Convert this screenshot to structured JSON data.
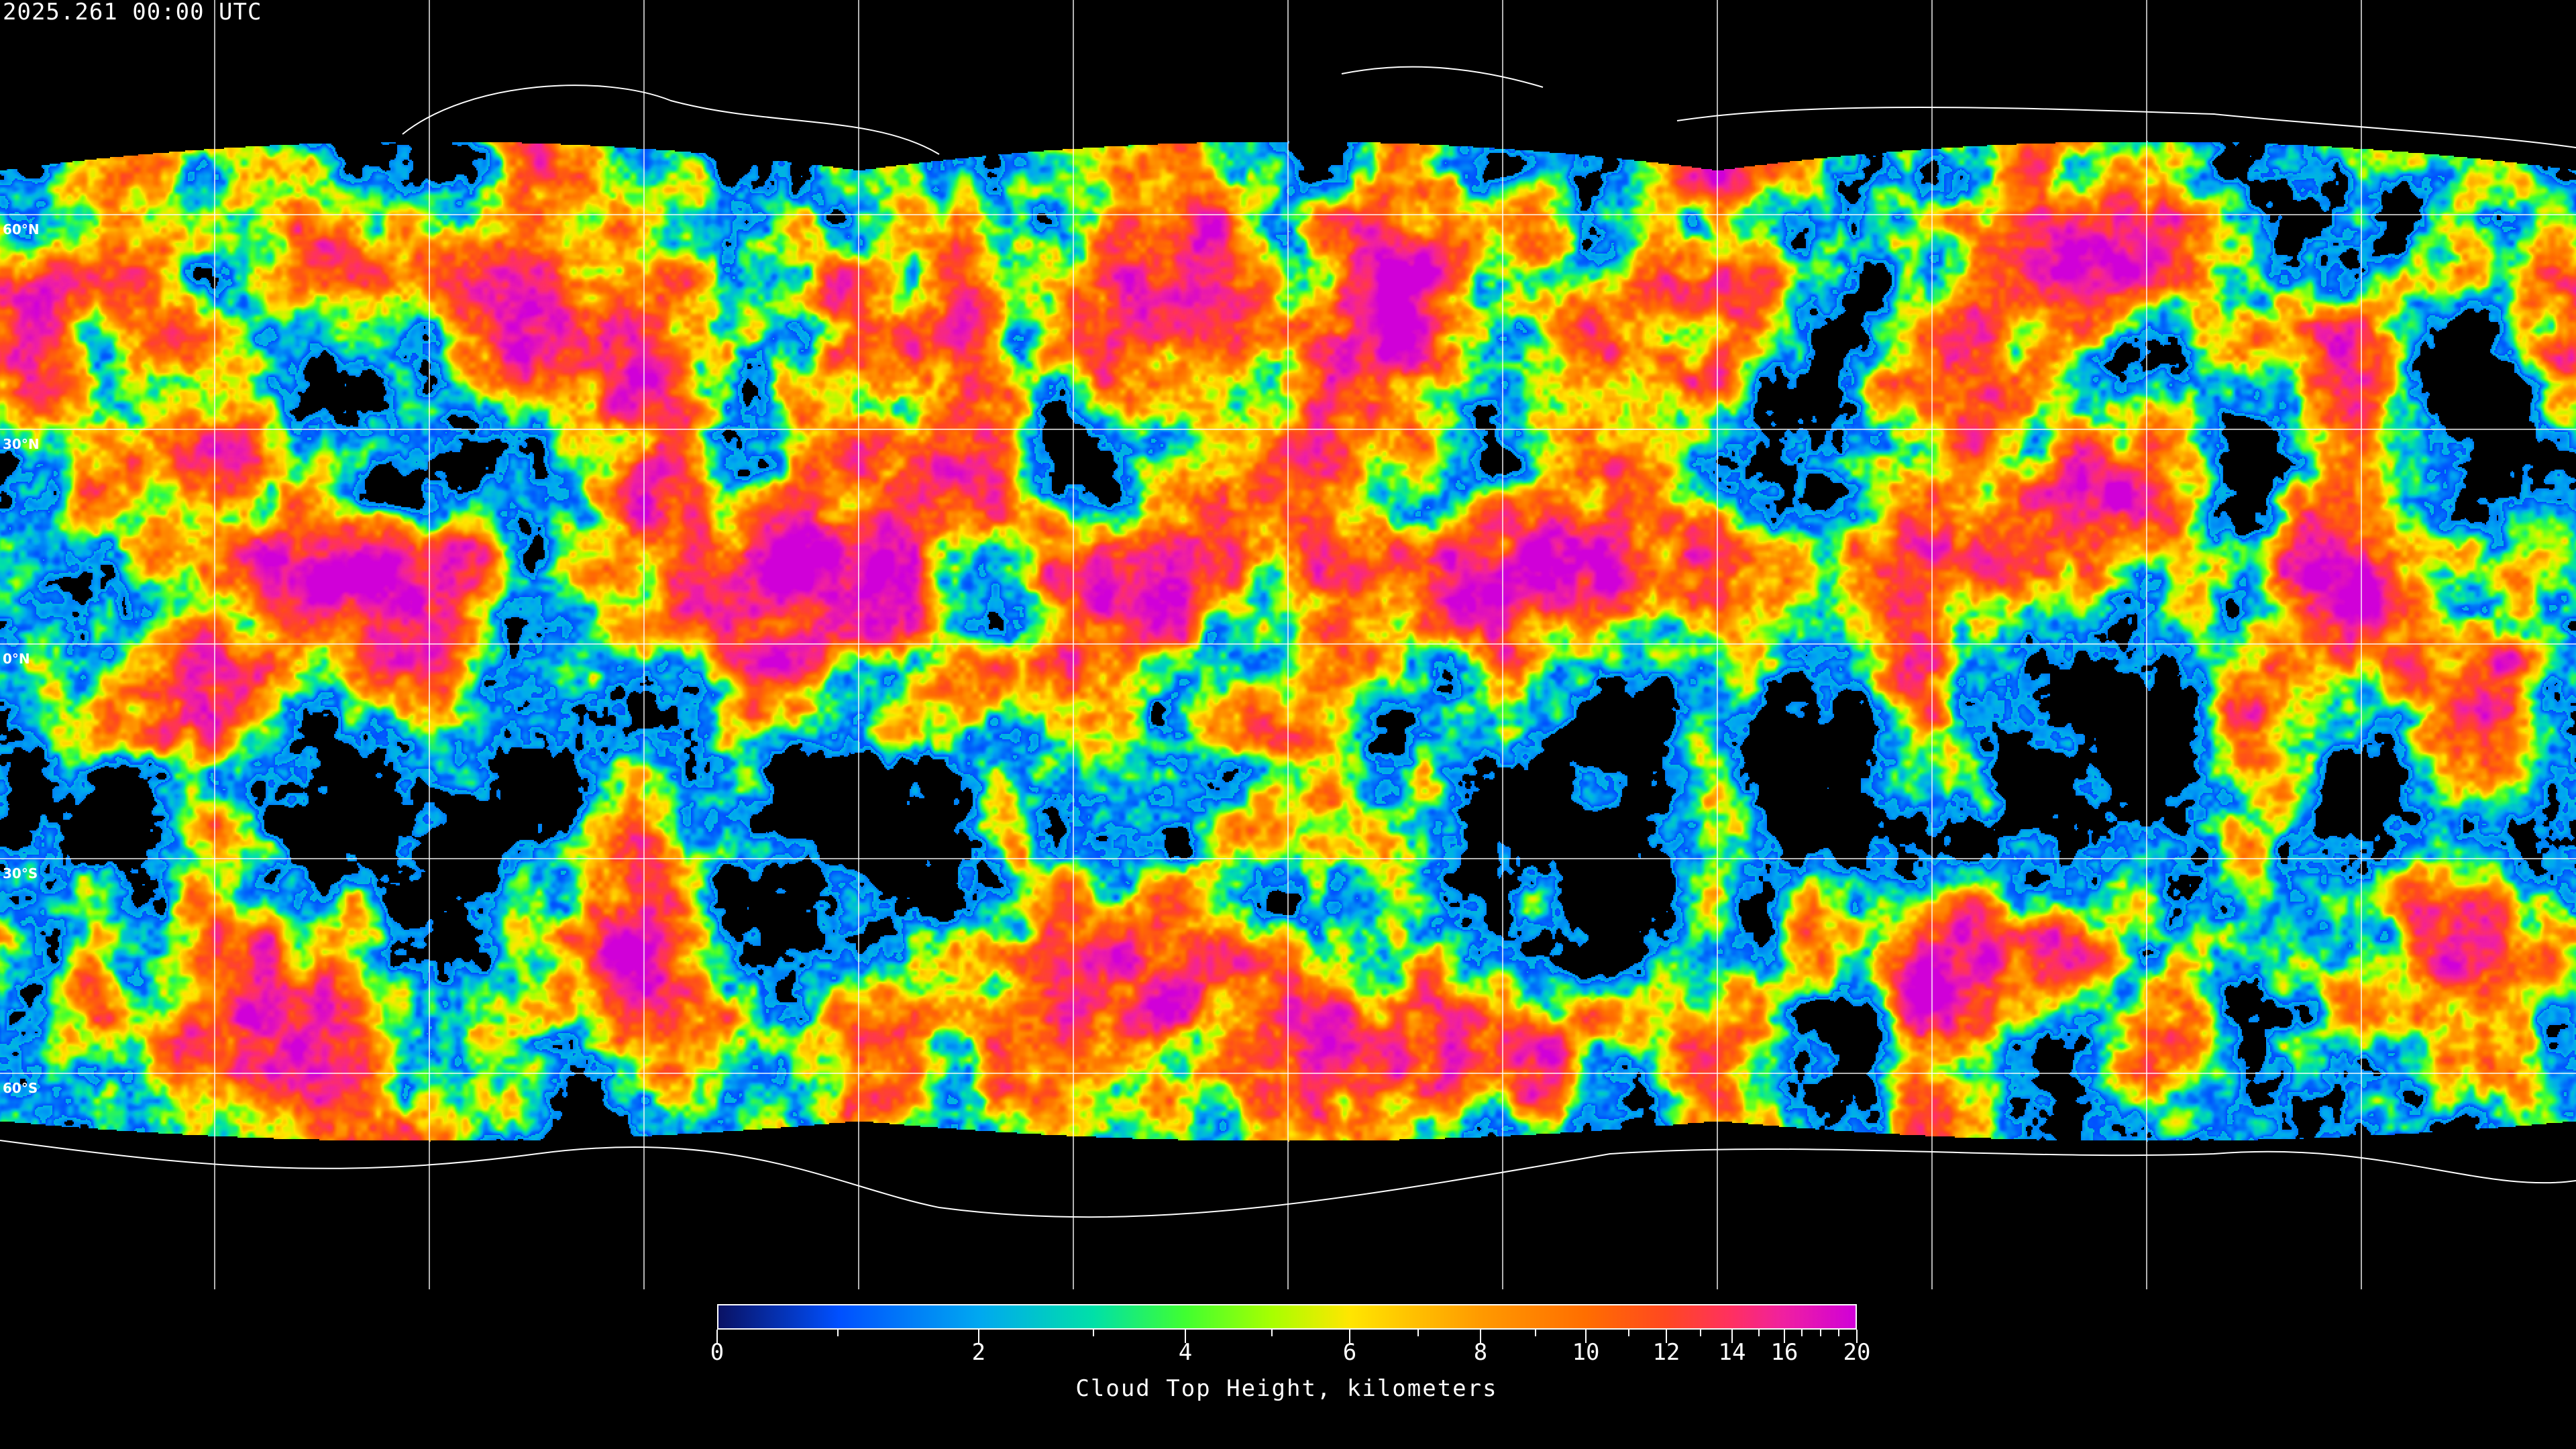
{
  "header": {
    "timestamp": "2025.261 00:00 UTC"
  },
  "map": {
    "projection": "equirectangular",
    "variable": "cloud top height",
    "latitude_labels": [
      "60°N",
      "30°N",
      "0°N",
      "30°S",
      "60°S"
    ],
    "gridlines": true,
    "gridline_color": "#ffffff",
    "background_color": "#000000"
  },
  "colorbar": {
    "title": "Cloud Top Height, kilometers",
    "tick_labels": [
      "0",
      "2",
      "4",
      "6",
      "8",
      "10",
      "12",
      "14",
      "16",
      "20"
    ],
    "range_km": [
      0,
      20
    ],
    "colors": [
      "#0a1264",
      "#0050ff",
      "#00a8f0",
      "#00e0a8",
      "#40ff30",
      "#a8ff00",
      "#ffe600",
      "#ffbe00",
      "#ff9a00",
      "#ff6e00",
      "#ff4820",
      "#ff3060",
      "#f020a0",
      "#d000d8"
    ]
  }
}
